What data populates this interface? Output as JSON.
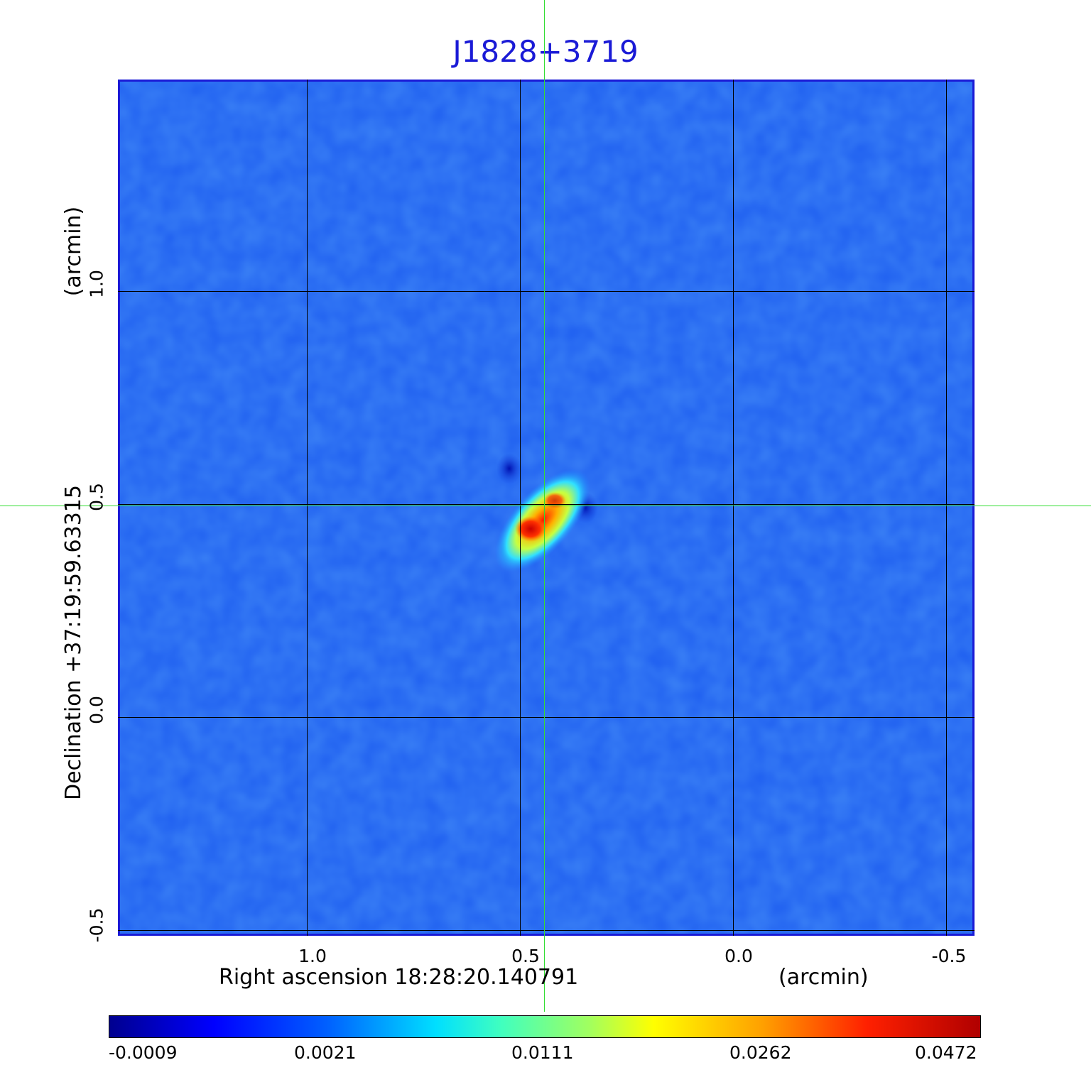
{
  "title": "J1828+3719",
  "axes": {
    "x_label": "Right ascension  18:28:20.140791",
    "x_unit": "(arcmin)",
    "y_label": "Declination  +37:19:59.63315",
    "y_unit": "(arcmin)",
    "x_ticks": [
      "1.0",
      "0.5",
      "0.0",
      "-0.5"
    ],
    "y_ticks": [
      "1.0",
      "0.5",
      "0.0",
      "-0.5"
    ]
  },
  "colorbar": {
    "colormap": "jet",
    "ticks": [
      "-0.0009",
      "0.0021",
      "0.0111",
      "0.0262",
      "0.0472"
    ]
  },
  "colors": {
    "title": "#1a1ad6",
    "frame": "#1a1ad6",
    "crosshair": "#33dd33",
    "background_field": "#1f5ff0"
  }
}
